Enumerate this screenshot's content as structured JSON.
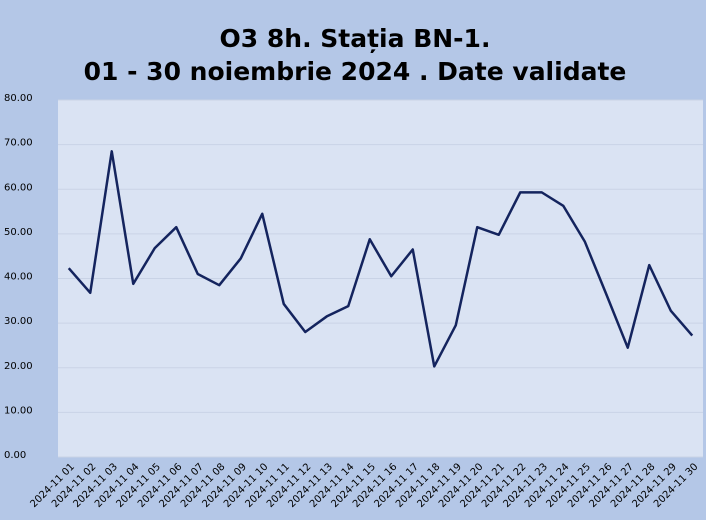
{
  "chart_data": {
    "type": "line",
    "title": "O3 8h. Stația BN-1.",
    "subtitle": "01 - 30 noiembrie 2024 . Date validate",
    "categories": [
      "2024-11 01",
      "2024-11 02",
      "2024-11 03",
      "2024-11 04",
      "2024-11 05",
      "2024-11 06",
      "2024-11 07",
      "2024-11 08",
      "2024-11 09",
      "2024-11 10",
      "2024-11 11",
      "2024-11 12",
      "2024-11 13",
      "2024-11 14",
      "2024-11 15",
      "2024-11 16",
      "2024-11 17",
      "2024-11 18",
      "2024-11 19",
      "2024-11 20",
      "2024-11 21",
      "2024-11 22",
      "2024-11 23",
      "2024-11 24",
      "2024-11 25",
      "2024-11 26",
      "2024-11 27",
      "2024-11 28",
      "2024-11 29",
      "2024-11 30"
    ],
    "values": [
      42.3,
      36.8,
      68.5,
      38.8,
      46.8,
      51.5,
      41.0,
      38.5,
      44.5,
      54.5,
      34.3,
      28.0,
      31.5,
      33.8,
      48.8,
      40.5,
      46.5,
      20.3,
      29.5,
      51.5,
      49.8,
      59.3,
      59.3,
      56.3,
      48.3,
      36.5,
      24.5,
      43.0,
      32.8,
      27.2
    ],
    "color": "#14245e",
    "ylim": [
      0,
      80
    ],
    "yticks": [
      {
        "value": 0,
        "label": "0.00"
      },
      {
        "value": 10,
        "label": "10.00"
      },
      {
        "value": 20,
        "label": "20.00"
      },
      {
        "value": 30,
        "label": "30.00"
      },
      {
        "value": 40,
        "label": "40.00"
      },
      {
        "value": 50,
        "label": "50.00"
      },
      {
        "value": 60,
        "label": "60.00"
      },
      {
        "value": 70,
        "label": "70.00"
      },
      {
        "value": 80,
        "label": "80.00"
      }
    ],
    "grid": true
  }
}
